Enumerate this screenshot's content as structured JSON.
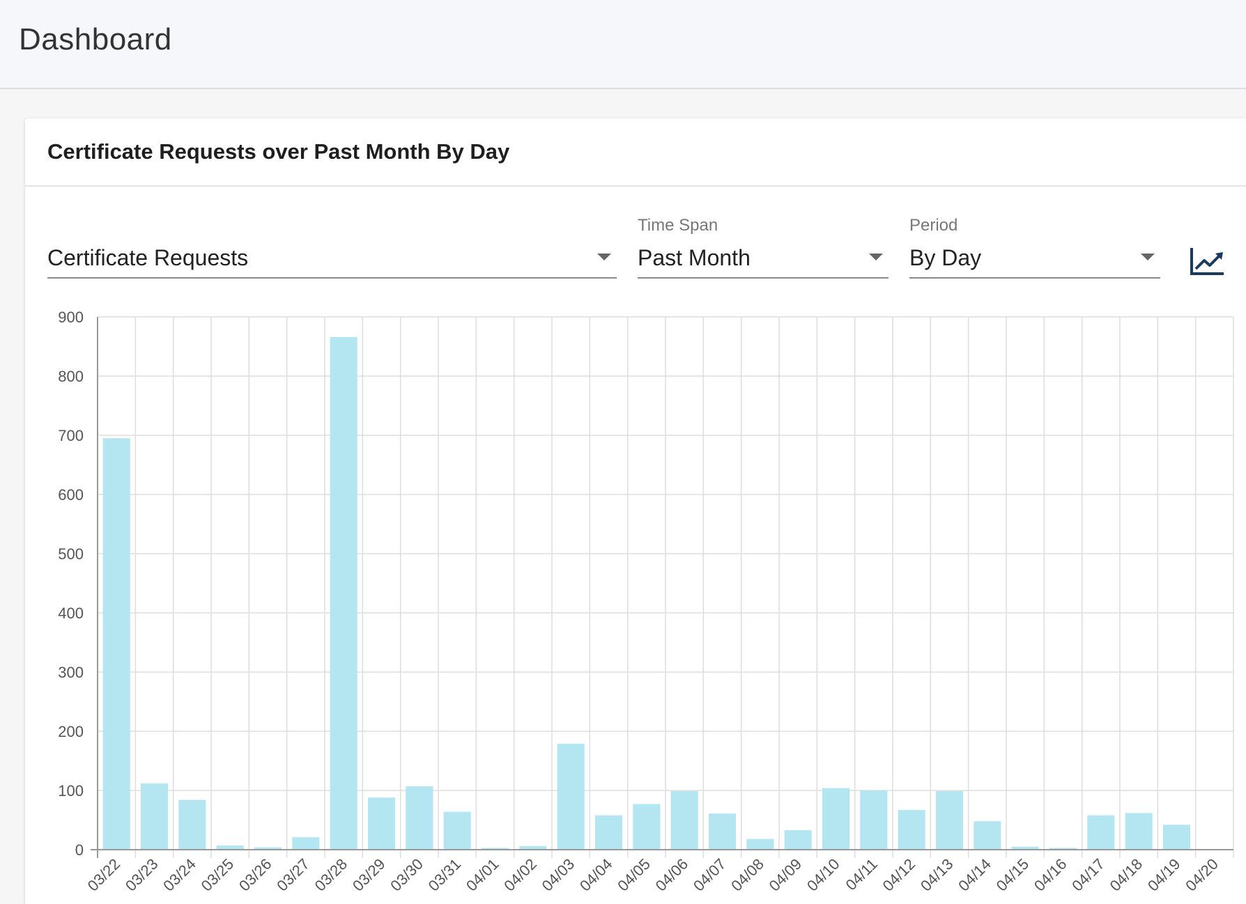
{
  "header": {
    "title": "Dashboard"
  },
  "card": {
    "title": "Certificate Requests over Past Month By Day"
  },
  "controls": {
    "metric": {
      "label": "",
      "value": "Certificate Requests"
    },
    "time_span": {
      "label": "Time Span",
      "value": "Past Month"
    },
    "period": {
      "label": "Period",
      "value": "By Day"
    },
    "trend_icon": "trending-up-icon"
  },
  "colors": {
    "bar": "#b3e6f1",
    "grid": "#dddddd",
    "axis": "#999999",
    "icon": "#1b3a5e"
  },
  "chart_data": {
    "type": "bar",
    "categories": [
      "03/22",
      "03/23",
      "03/24",
      "03/25",
      "03/26",
      "03/27",
      "03/28",
      "03/29",
      "03/30",
      "03/31",
      "04/01",
      "04/02",
      "04/03",
      "04/04",
      "04/05",
      "04/06",
      "04/07",
      "04/08",
      "04/09",
      "04/10",
      "04/11",
      "04/12",
      "04/13",
      "04/14",
      "04/15",
      "04/16",
      "04/17",
      "04/18",
      "04/19",
      "04/20"
    ],
    "values": [
      695,
      112,
      84,
      7,
      4,
      21,
      866,
      88,
      107,
      64,
      3,
      6,
      179,
      58,
      77,
      99,
      61,
      18,
      33,
      104,
      100,
      67,
      99,
      48,
      5,
      3,
      58,
      62,
      42,
      0
    ],
    "yticks": [
      0,
      100,
      200,
      300,
      400,
      500,
      600,
      700,
      800,
      900
    ],
    "ylim": [
      0,
      900
    ],
    "grid": true,
    "legend": "none"
  }
}
